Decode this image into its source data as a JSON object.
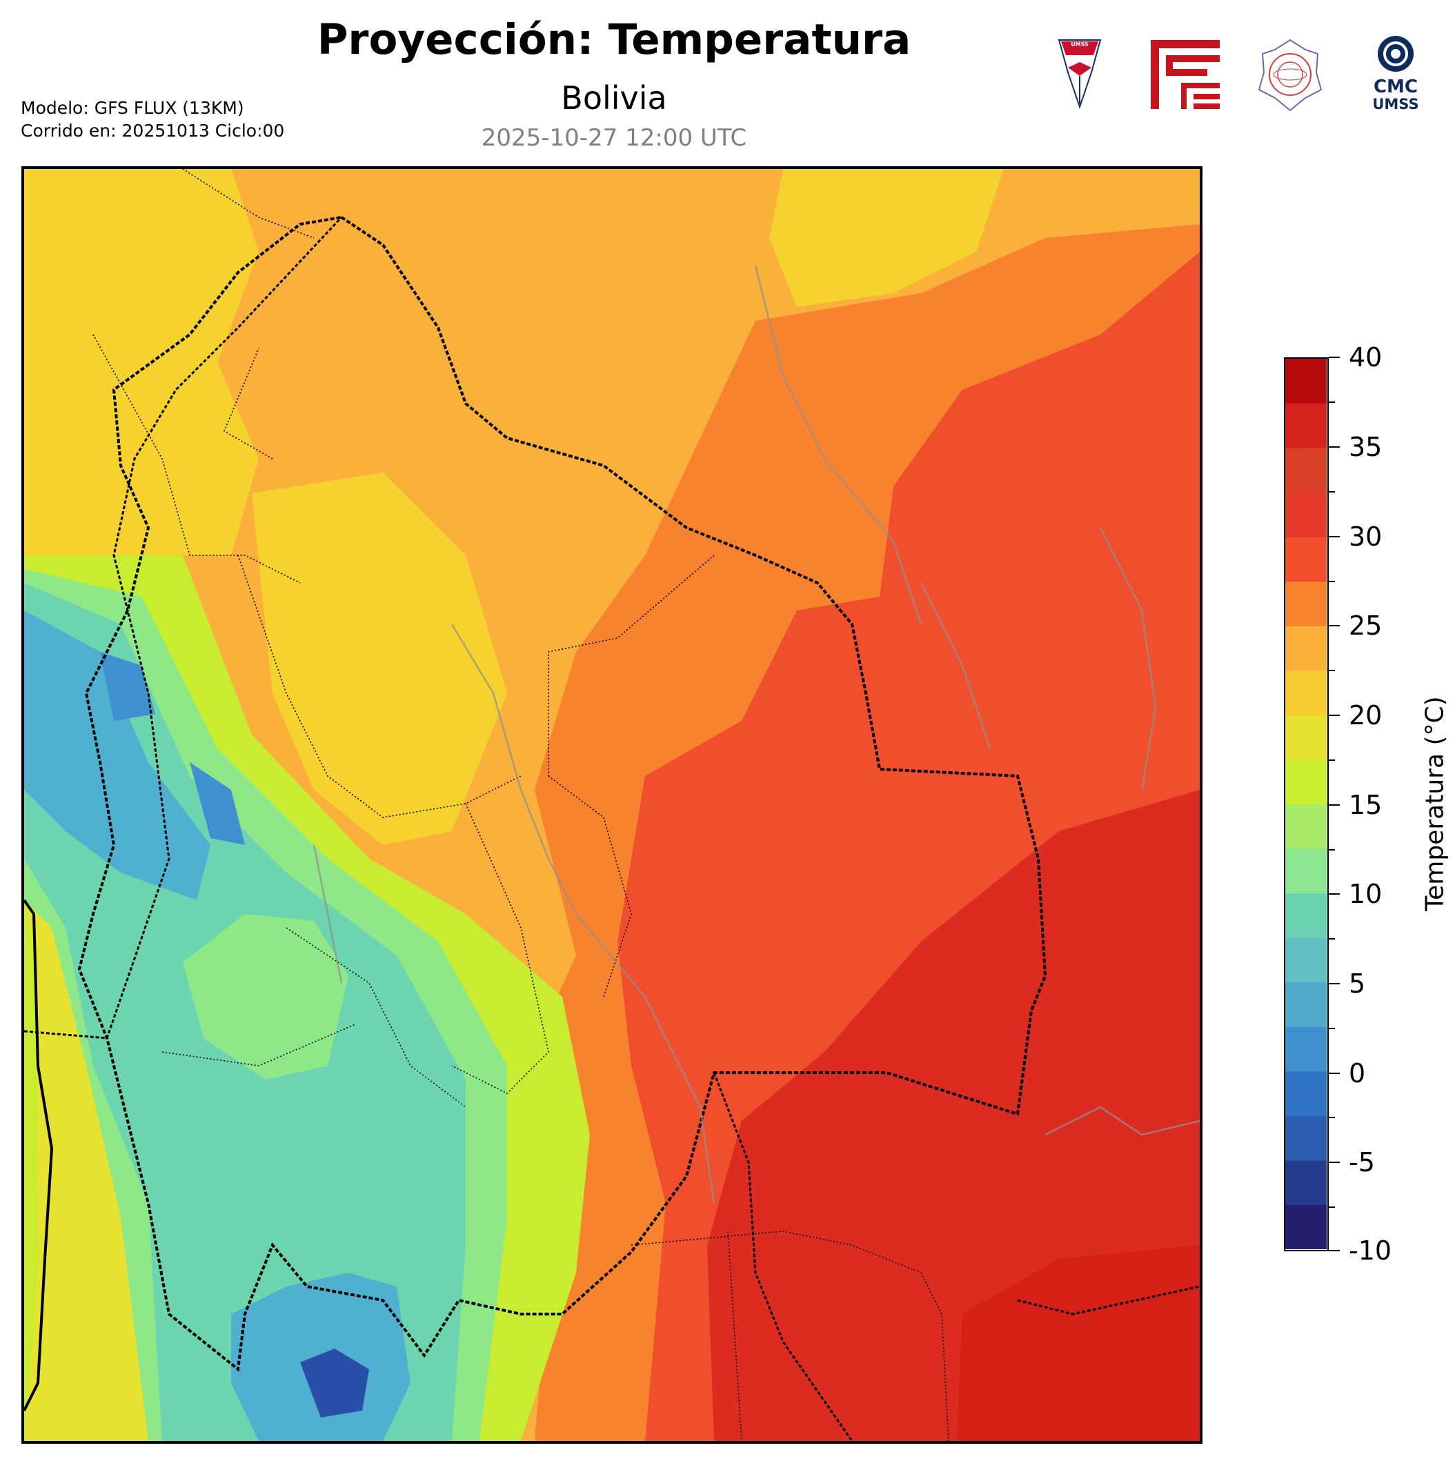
{
  "header": {
    "title": "Proyección: Temperatura",
    "subtitle": "Bolivia",
    "datetime": "2025-10-27 12:00 UTC",
    "model_line": "Modelo: GFS FLUX (13KM)",
    "run_line": "Corrido en: 20251013 Ciclo:00"
  },
  "logos": [
    {
      "icon": "umss-shield-icon",
      "text": "UMSS",
      "color": "#c8102e"
    },
    {
      "icon": "red-maze-icon",
      "color": "#c4161c"
    },
    {
      "icon": "departamento-fisica-seal-icon",
      "color": "#d04040"
    },
    {
      "icon": "cmc-gear-icon",
      "text": "CMC",
      "text2": "UMSS",
      "color": "#0d2c5c"
    }
  ],
  "map": {
    "variable": "Temperatura",
    "palette": {
      "cold": "#2a4fa8",
      "cool": "#4fb0d0",
      "teal": "#6dd4b0",
      "green": "#8ee888",
      "lime": "#c8ec30",
      "yellow": "#f5d22e",
      "lightorange": "#fbb03b",
      "orange": "#f8832e",
      "red": "#f04e2c",
      "darkred": "#dc2c22",
      "deepred": "#d52018"
    },
    "country_border_color": "#000000",
    "river_color": "#909090"
  },
  "colorbar": {
    "label": "Temperatura (°C)",
    "min": -10,
    "max": 40,
    "step": 2.5,
    "ticks": [
      "40",
      "35",
      "30",
      "25",
      "20",
      "15",
      "10",
      "5",
      "0",
      "-5",
      "-10"
    ],
    "colors": [
      "#241d6e",
      "#253d8e",
      "#2b5cb0",
      "#3074c4",
      "#3e90cf",
      "#50aacc",
      "#60c0c4",
      "#6ad2b0",
      "#8ce690",
      "#a8ec68",
      "#ccee30",
      "#e6e232",
      "#f6cc30",
      "#fbb03b",
      "#f9822e",
      "#f04e2c",
      "#e4392a",
      "#d83f24",
      "#d5221c",
      "#b70a0a"
    ]
  }
}
